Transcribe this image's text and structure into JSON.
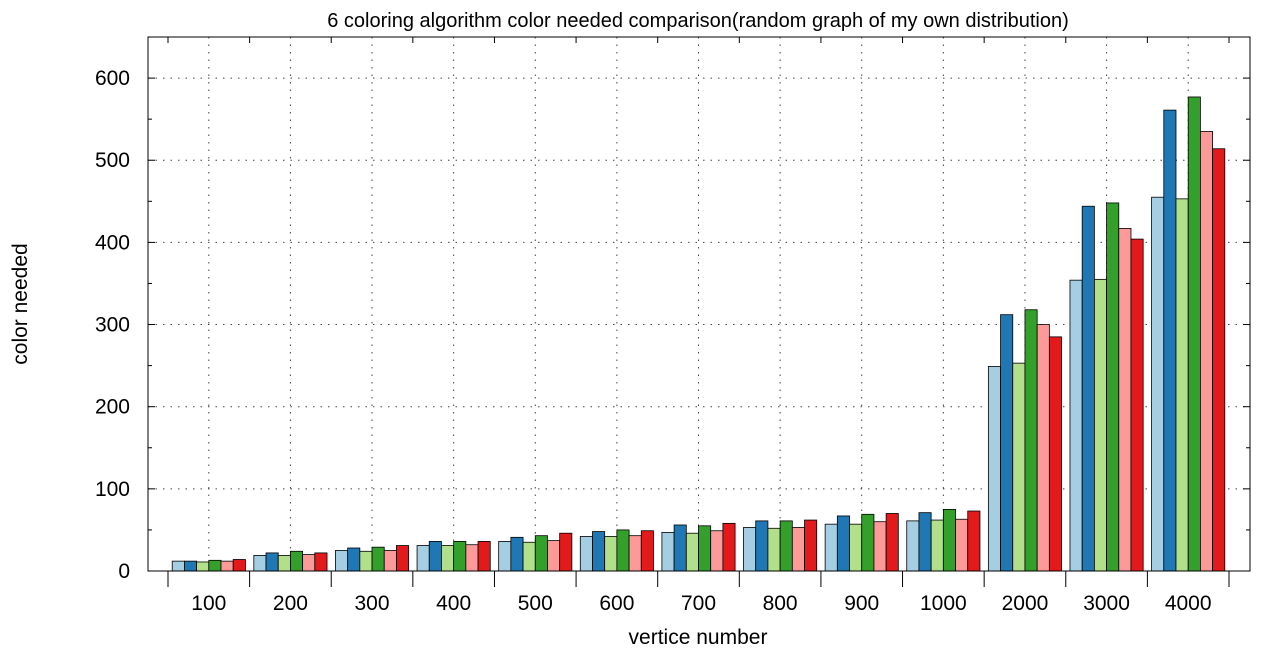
{
  "chart_data": {
    "type": "bar",
    "title": "6 coloring algorithm color needed comparison(random graph of my own distribution)",
    "xlabel": "vertice number",
    "ylabel": "color needed",
    "categories": [
      "100",
      "200",
      "300",
      "400",
      "500",
      "600",
      "700",
      "800",
      "900",
      "1000",
      "2000",
      "3000",
      "4000"
    ],
    "ylim": [
      0,
      650
    ],
    "yticks": [
      0,
      100,
      200,
      300,
      400,
      500,
      600
    ],
    "grid": true,
    "legend": "none",
    "series": [
      {
        "color": "#a6cee3",
        "values": [
          12,
          19,
          25,
          31,
          36,
          42,
          47,
          53,
          57,
          61,
          249,
          354,
          455
        ]
      },
      {
        "color": "#1f78b4",
        "values": [
          12,
          22,
          28,
          36,
          41,
          48,
          56,
          61,
          67,
          71,
          312,
          444,
          561
        ]
      },
      {
        "color": "#b2df8a",
        "values": [
          11,
          19,
          24,
          31,
          35,
          42,
          46,
          52,
          57,
          62,
          253,
          355,
          453
        ]
      },
      {
        "color": "#33a02c",
        "values": [
          13,
          24,
          29,
          36,
          43,
          50,
          55,
          61,
          69,
          75,
          318,
          448,
          577
        ]
      },
      {
        "color": "#fb9a99",
        "values": [
          12,
          20,
          25,
          32,
          37,
          43,
          49,
          53,
          60,
          63,
          300,
          417,
          535
        ]
      },
      {
        "color": "#e31a1c",
        "values": [
          14,
          22,
          31,
          36,
          46,
          49,
          58,
          62,
          70,
          73,
          285,
          404,
          514
        ]
      }
    ]
  }
}
